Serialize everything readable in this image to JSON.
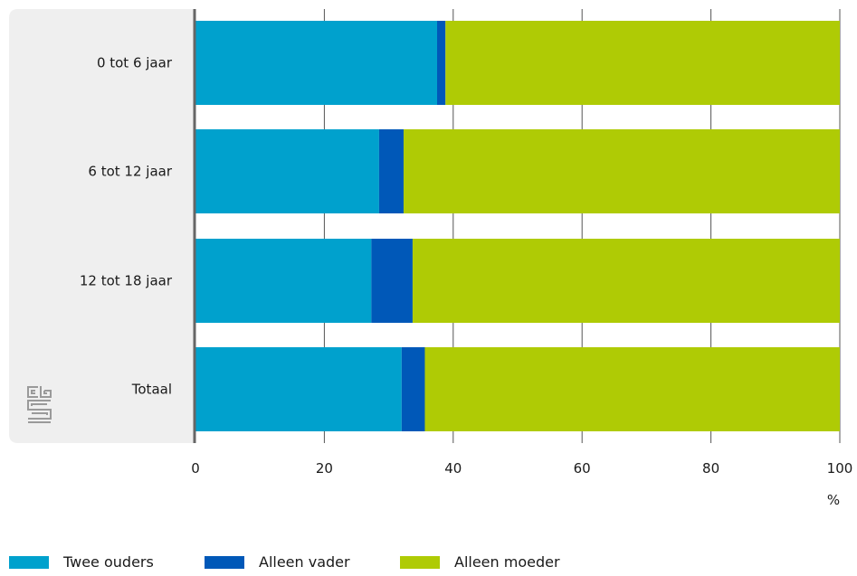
{
  "chart_data": {
    "type": "bar",
    "orientation": "horizontal",
    "stacked": true,
    "categories": [
      "0 tot 6 jaar",
      "6 tot 12 jaar",
      "12 tot 18 jaar",
      "Totaal"
    ],
    "series": [
      {
        "name": "Twee ouders",
        "values": [
          37.5,
          28.5,
          27.3,
          32.0
        ],
        "color": "#00a1cd"
      },
      {
        "name": "Alleen vader",
        "values": [
          1.3,
          3.8,
          6.4,
          3.6
        ],
        "color": "#0058b8"
      },
      {
        "name": "Alleen moeder",
        "values": [
          61.2,
          67.7,
          66.3,
          64.4
        ],
        "color": "#afcb05"
      }
    ],
    "xlim": [
      0,
      100
    ],
    "xticks": [
      0,
      20,
      40,
      60,
      80,
      100
    ],
    "xlabel": "%",
    "grid": true,
    "legend_position": "bottom",
    "panel_color": "#efefef",
    "axis_color": "#666666"
  },
  "logo": {
    "name": "cbs-logo-icon",
    "text": "cbs"
  }
}
